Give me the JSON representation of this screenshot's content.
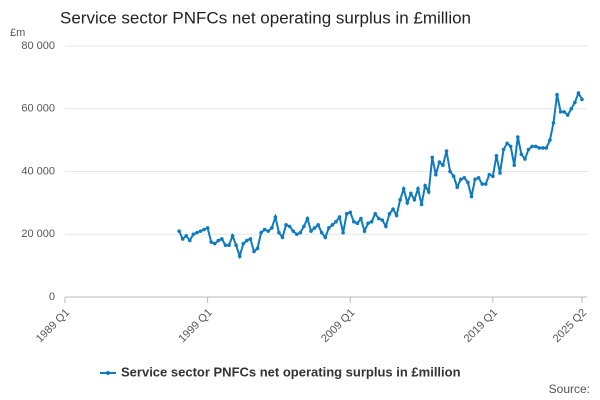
{
  "chart_data": {
    "type": "line",
    "title": "Service sector PNFCs net operating surplus in £million",
    "y_unit": "£m",
    "source": "Source:",
    "categories": [
      "1989 Q1",
      null,
      null,
      null,
      null,
      null,
      null,
      null,
      null,
      null,
      null,
      null,
      null,
      null,
      null,
      null,
      null,
      null,
      null,
      null,
      null,
      null,
      null,
      null,
      null,
      null,
      null,
      null,
      null,
      null,
      null,
      null,
      null,
      null,
      null,
      null,
      null,
      null,
      null,
      null,
      "1999 Q1",
      null,
      null,
      null,
      null,
      null,
      null,
      null,
      null,
      null,
      null,
      null,
      null,
      null,
      null,
      null,
      null,
      null,
      null,
      null,
      null,
      null,
      null,
      null,
      null,
      null,
      null,
      null,
      null,
      null,
      null,
      null,
      null,
      null,
      null,
      null,
      null,
      null,
      null,
      null,
      "2009 Q1",
      null,
      null,
      null,
      null,
      null,
      null,
      null,
      null,
      null,
      null,
      null,
      null,
      null,
      null,
      null,
      null,
      null,
      null,
      null,
      null,
      null,
      null,
      null,
      null,
      null,
      null,
      null,
      null,
      null,
      null,
      null,
      null,
      null,
      null,
      null,
      null,
      null,
      null,
      null,
      "2019 Q1",
      null,
      null,
      null,
      null,
      null,
      null,
      null,
      null,
      null,
      null,
      null,
      null,
      null,
      null,
      null,
      null,
      null,
      null,
      null,
      null,
      null,
      null,
      null,
      null,
      "2025 Q2"
    ],
    "series": [
      {
        "name": "Service sector PNFCs net operating surplus in £million",
        "color": "#0f7bbf",
        "values": [
          null,
          null,
          null,
          null,
          null,
          null,
          null,
          null,
          null,
          null,
          null,
          null,
          null,
          null,
          null,
          null,
          null,
          null,
          null,
          null,
          null,
          null,
          null,
          null,
          null,
          null,
          null,
          null,
          null,
          null,
          null,
          null,
          21000,
          18500,
          19500,
          18000,
          20000,
          20500,
          21000,
          21500,
          22000,
          17500,
          17000,
          18000,
          18500,
          16500,
          16500,
          19500,
          16500,
          13000,
          17000,
          18000,
          18500,
          14500,
          15500,
          20500,
          21500,
          21000,
          22000,
          25500,
          20500,
          19000,
          23000,
          22500,
          21000,
          20000,
          20500,
          22500,
          25000,
          21000,
          22000,
          23000,
          20500,
          19000,
          22000,
          23000,
          24000,
          25500,
          20500,
          26500,
          27000,
          24000,
          23500,
          25000,
          21000,
          23500,
          24000,
          26500,
          25000,
          24500,
          22500,
          26500,
          28000,
          26000,
          31000,
          34500,
          30000,
          33000,
          31000,
          34500,
          29500,
          35500,
          33500,
          44500,
          39000,
          43000,
          42000,
          46500,
          40000,
          38500,
          35000,
          37500,
          38000,
          36500,
          32000,
          37500,
          38000,
          36000,
          36000,
          39000,
          38500,
          45000,
          39500,
          47000,
          49000,
          48000,
          42000,
          51000,
          45500,
          44000,
          47000,
          48000,
          48000,
          47500,
          47500,
          47500,
          50000,
          55500,
          64500,
          59000,
          59000,
          58000,
          60000,
          62000,
          65000,
          63000
        ]
      }
    ],
    "ylim": [
      0,
      80000
    ],
    "yticks": [
      0,
      {
        "value": 20000,
        "label": "20 000"
      },
      {
        "value": 40000,
        "label": "40 000"
      },
      {
        "value": 60000,
        "label": "60 000"
      },
      {
        "value": 80000,
        "label": "80 000"
      }
    ],
    "grid": true,
    "legend": "bottom"
  }
}
